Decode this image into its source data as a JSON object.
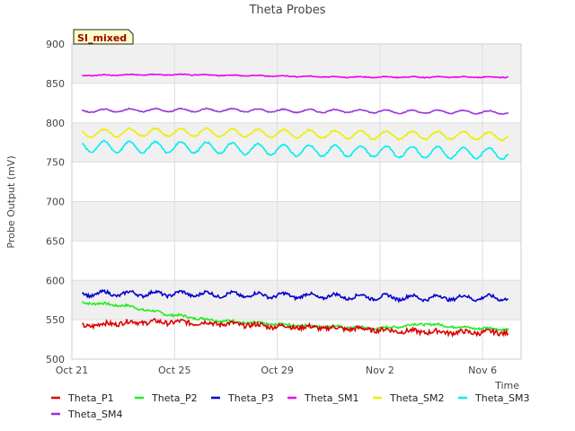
{
  "chart_data": {
    "type": "line",
    "title": "Theta Probes",
    "badge": "SI_mixed",
    "ylabel": "Probe Output (mV)",
    "xlabel": "Time",
    "ylim": [
      500,
      900
    ],
    "yticks": [
      500,
      550,
      600,
      650,
      700,
      750,
      800,
      850,
      900
    ],
    "x_start": "Oct 21",
    "x_end_day_offset": 17.5,
    "xticks": [
      {
        "label": "Oct 21",
        "day": 0
      },
      {
        "label": "Oct 25",
        "day": 4
      },
      {
        "label": "Oct 29",
        "day": 8
      },
      {
        "label": "Nov 2",
        "day": 12
      },
      {
        "label": "Nov 6",
        "day": 16
      }
    ],
    "grid": true,
    "legend_position": "bottom",
    "series": [
      {
        "name": "Theta_P1",
        "color": "#dd0000",
        "start_day": 0.4,
        "end_day": 17.0,
        "base": [
          542,
          547,
          547,
          545,
          542,
          540,
          538,
          535,
          534,
          534
        ],
        "amp": 1.5,
        "noise": 3
      },
      {
        "name": "Theta_P2",
        "color": "#22ee22",
        "start_day": 0.4,
        "end_day": 17.0,
        "base": [
          572,
          568,
          557,
          550,
          546,
          543,
          541,
          539,
          545,
          540,
          538
        ],
        "amp": 1,
        "noise": 1.5
      },
      {
        "name": "Theta_P3",
        "color": "#0000cc",
        "start_day": 0.4,
        "end_day": 17.0,
        "base": [
          583,
          583,
          583,
          582,
          581,
          580,
          579,
          578,
          578,
          578
        ],
        "amp": 3,
        "noise": 2
      },
      {
        "name": "Theta_SM1",
        "color": "#ee00ee",
        "start_day": 0.4,
        "end_day": 17.0,
        "base": [
          860,
          861,
          861,
          860,
          859,
          858,
          858,
          858,
          858
        ],
        "amp": 0.5,
        "noise": 0.5
      },
      {
        "name": "Theta_SM2",
        "color": "#eeee00",
        "start_day": 0.4,
        "end_day": 17.0,
        "base": [
          786,
          788,
          788,
          787,
          786,
          785,
          784,
          784,
          783
        ],
        "amp": 5,
        "noise": 1
      },
      {
        "name": "Theta_SM3",
        "color": "#00eeee",
        "start_day": 0.4,
        "end_day": 17.0,
        "base": [
          770,
          769,
          769,
          767,
          765,
          764,
          763,
          762,
          761
        ],
        "amp": 7,
        "noise": 1
      },
      {
        "name": "Theta_SM4",
        "color": "#9933dd",
        "start_day": 0.4,
        "end_day": 17.0,
        "base": [
          815,
          816,
          816,
          816,
          815,
          815,
          814,
          814,
          813
        ],
        "amp": 2,
        "noise": 0.6
      }
    ]
  }
}
